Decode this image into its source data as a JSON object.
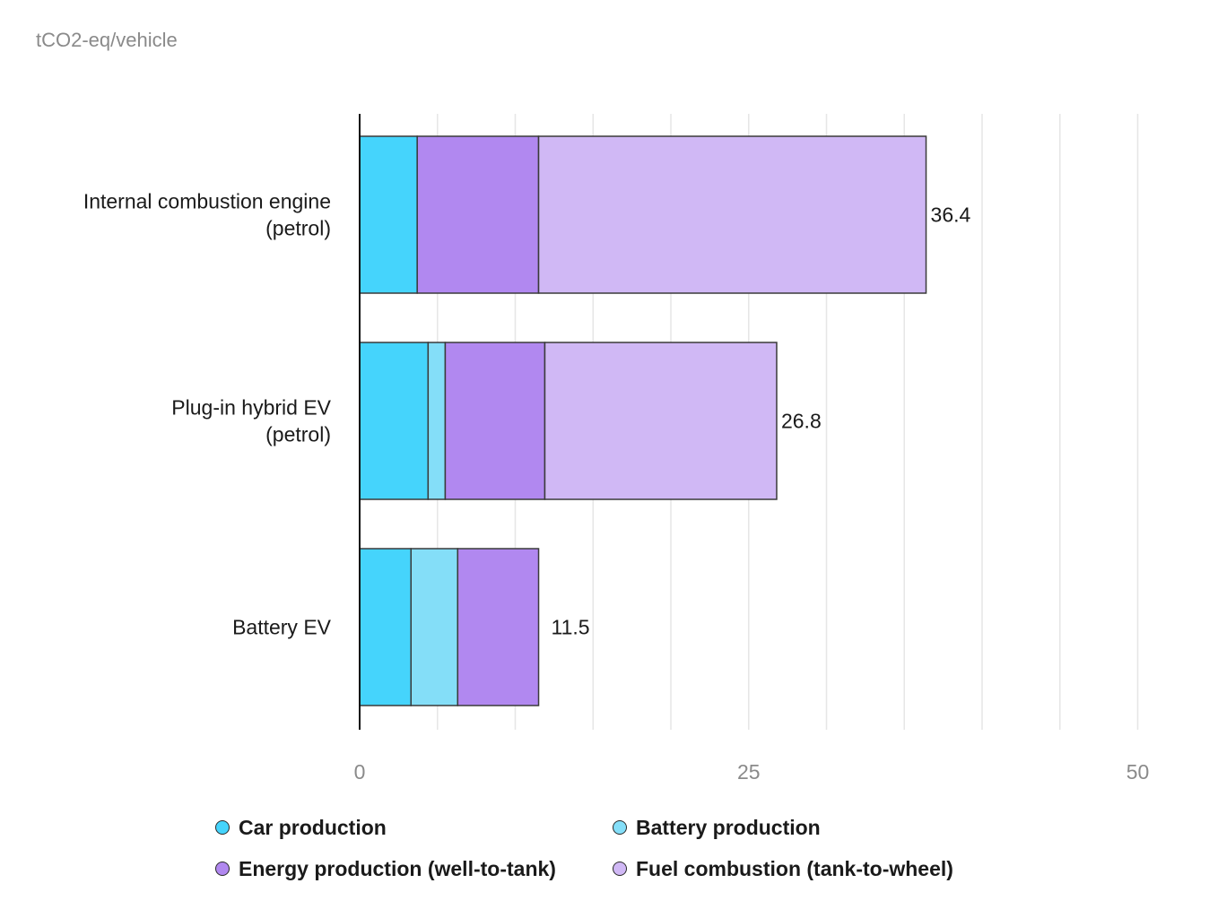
{
  "colors": {
    "car_production": "#45d4fc",
    "battery_production": "#84def8",
    "energy_production": "#b188f0",
    "fuel_combustion": "#d0b8f5",
    "grid": "#e6e6e6",
    "axis": "#111111"
  },
  "chart_data": {
    "type": "bar",
    "orientation": "horizontal",
    "stacked": true,
    "unit_label": "tCO2-eq/vehicle",
    "categories": [
      [
        "Internal combustion engine",
        "(petrol)"
      ],
      [
        "Plug-in hybrid EV",
        "(petrol)"
      ],
      [
        "Battery EV"
      ]
    ],
    "series": [
      {
        "name": "Car production",
        "color_key": "car_production",
        "values": [
          3.7,
          4.4,
          3.3
        ]
      },
      {
        "name": "Battery production",
        "color_key": "battery_production",
        "values": [
          0,
          1.1,
          3.0
        ]
      },
      {
        "name": "Energy production (well-to-tank)",
        "color_key": "energy_production",
        "values": [
          7.8,
          6.4,
          5.2
        ]
      },
      {
        "name": "Fuel combustion (tank-to-wheel)",
        "color_key": "fuel_combustion",
        "values": [
          24.9,
          14.9,
          0
        ]
      }
    ],
    "totals": [
      "36.4",
      "26.8",
      "11.5"
    ],
    "xlim": [
      0,
      50
    ],
    "x_ticks": [
      "0",
      "25",
      "50"
    ],
    "grid_step": 5,
    "grid": true,
    "legend_position": "bottom"
  }
}
